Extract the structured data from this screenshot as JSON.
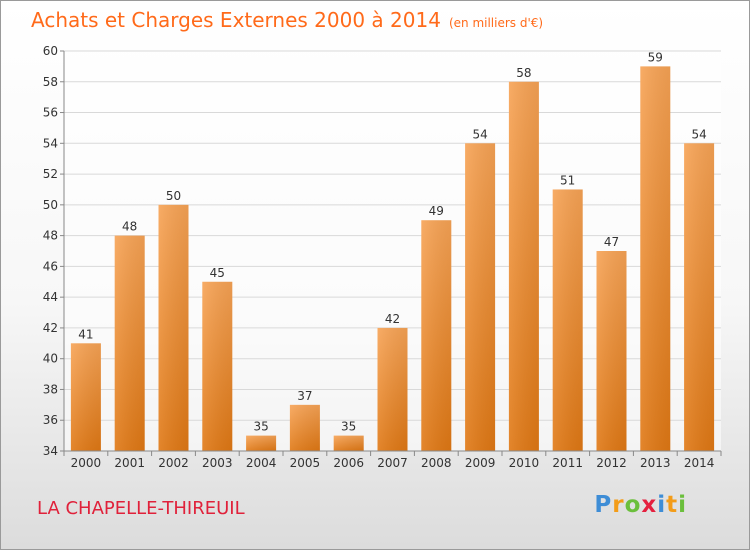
{
  "chart_data": {
    "type": "bar",
    "title": "Achats et Charges Externes 2000 à 2014",
    "subtitle": "(en milliers d'€)",
    "categories": [
      "2000",
      "2001",
      "2002",
      "2003",
      "2004",
      "2005",
      "2006",
      "2007",
      "2008",
      "2009",
      "2010",
      "2011",
      "2012",
      "2013",
      "2014"
    ],
    "values": [
      41,
      48,
      50,
      45,
      35,
      37,
      35,
      42,
      49,
      54,
      58,
      51,
      47,
      59,
      54
    ],
    "ylim": [
      34,
      60
    ],
    "yticks": [
      34,
      36,
      38,
      40,
      42,
      44,
      46,
      48,
      50,
      52,
      54,
      56,
      58,
      60
    ],
    "xlabel": "",
    "ylabel": "",
    "grid": true,
    "colors": {
      "bar_top": "#f7a355",
      "bar_bottom": "#e07814",
      "title": "#ff6a1a"
    }
  },
  "place_label": "LA CHAPELLE-THIREUIL",
  "logo": {
    "text": "Proxiti",
    "letters": [
      "P",
      "r",
      "o",
      "x",
      "i",
      "t",
      "i"
    ]
  }
}
